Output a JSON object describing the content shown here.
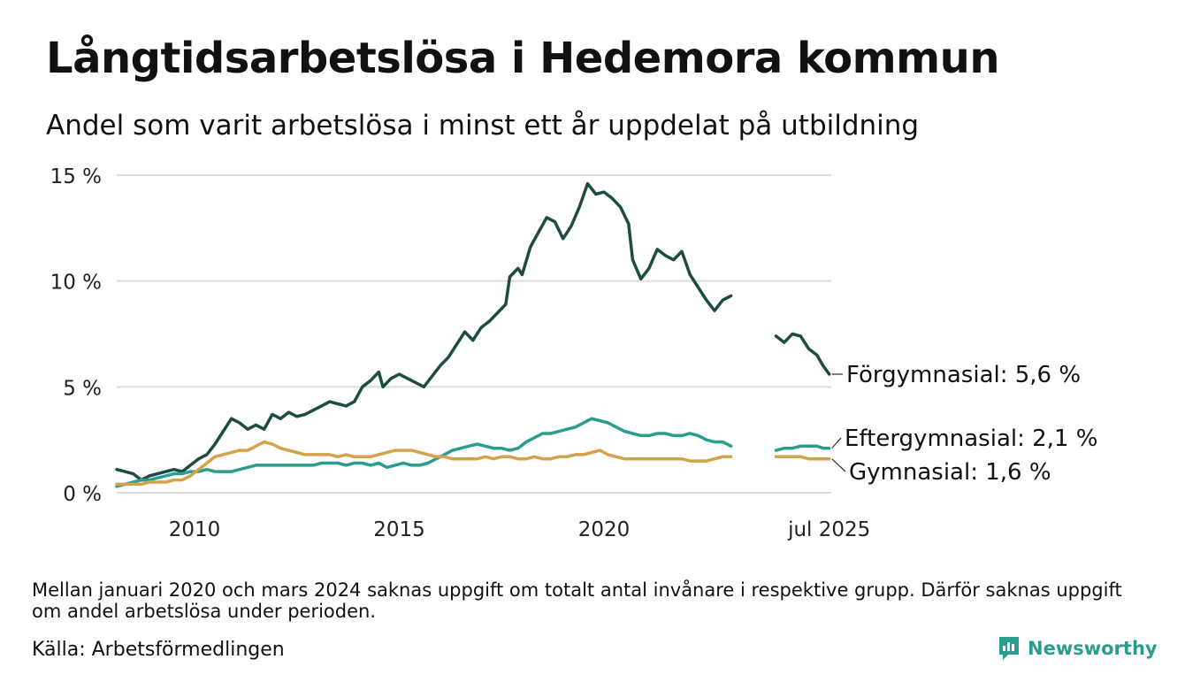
{
  "title": "Långtidsarbetslösa i Hedemora kommun",
  "subtitle": "Andel som varit arbetslösa i minst ett år uppdelat på utbildning",
  "note": "Mellan januari 2020 och mars 2024 saknas uppgift om totalt antal invånare i respektive grupp. Därför saknas uppgift om andel arbetslösa under perioden.",
  "source": "Källa: Arbetsförmedlingen",
  "brand": "Newsworthy",
  "colors": {
    "forgymnasial": "#1f4b45",
    "eftergymnasial": "#2a9d8f",
    "gymnasial": "#d4a24a",
    "grid": "#dddddd",
    "brand": "#2a9d8f"
  },
  "chart_data": {
    "type": "line",
    "x_unit": "year",
    "xlim": [
      2008.1,
      2025.55
    ],
    "ylim": [
      0,
      15
    ],
    "y_ticks": [
      {
        "v": 0,
        "label": "0 %"
      },
      {
        "v": 5,
        "label": "5 %"
      },
      {
        "v": 10,
        "label": "10 %"
      },
      {
        "v": 15,
        "label": "15 %"
      }
    ],
    "x_ticks": [
      {
        "v": 2010,
        "label": "2010"
      },
      {
        "v": 2015,
        "label": "2015"
      },
      {
        "v": 2020,
        "label": "2020"
      },
      {
        "v": 2025.5,
        "label": "jul 2025"
      }
    ],
    "grid": "horizontal",
    "series": [
      {
        "name": "Förgymnasial",
        "end_label": "Förgymnasial: 5,6 %",
        "color_key": "forgymnasial",
        "segments": [
          [
            [
              2008.1,
              1.1
            ],
            [
              2008.3,
              1.0
            ],
            [
              2008.5,
              0.9
            ],
            [
              2008.7,
              0.6
            ],
            [
              2008.9,
              0.8
            ],
            [
              2009.1,
              0.9
            ],
            [
              2009.3,
              1.0
            ],
            [
              2009.5,
              1.1
            ],
            [
              2009.7,
              1.0
            ],
            [
              2009.9,
              1.3
            ],
            [
              2010.1,
              1.6
            ],
            [
              2010.3,
              1.8
            ],
            [
              2010.5,
              2.3
            ],
            [
              2010.7,
              2.9
            ],
            [
              2010.9,
              3.5
            ],
            [
              2011.1,
              3.3
            ],
            [
              2011.3,
              3.0
            ],
            [
              2011.5,
              3.2
            ],
            [
              2011.7,
              3.0
            ],
            [
              2011.9,
              3.7
            ],
            [
              2012.1,
              3.5
            ],
            [
              2012.3,
              3.8
            ],
            [
              2012.5,
              3.6
            ],
            [
              2012.7,
              3.7
            ],
            [
              2012.9,
              3.9
            ],
            [
              2013.1,
              4.1
            ],
            [
              2013.3,
              4.3
            ],
            [
              2013.5,
              4.2
            ],
            [
              2013.7,
              4.1
            ],
            [
              2013.9,
              4.3
            ],
            [
              2014.1,
              5.0
            ],
            [
              2014.3,
              5.3
            ],
            [
              2014.5,
              5.7
            ],
            [
              2014.6,
              5.0
            ],
            [
              2014.8,
              5.4
            ],
            [
              2015.0,
              5.6
            ],
            [
              2015.2,
              5.4
            ],
            [
              2015.4,
              5.2
            ],
            [
              2015.6,
              5.0
            ],
            [
              2015.8,
              5.5
            ],
            [
              2016.0,
              6.0
            ],
            [
              2016.2,
              6.4
            ],
            [
              2016.4,
              7.0
            ],
            [
              2016.6,
              7.6
            ],
            [
              2016.8,
              7.2
            ],
            [
              2017.0,
              7.8
            ],
            [
              2017.2,
              8.1
            ],
            [
              2017.4,
              8.5
            ],
            [
              2017.6,
              8.9
            ],
            [
              2017.7,
              10.2
            ],
            [
              2017.9,
              10.6
            ],
            [
              2018.0,
              10.3
            ],
            [
              2018.2,
              11.6
            ],
            [
              2018.4,
              12.3
            ],
            [
              2018.6,
              13.0
            ],
            [
              2018.8,
              12.8
            ],
            [
              2018.9,
              12.4
            ],
            [
              2019.0,
              12.0
            ],
            [
              2019.2,
              12.6
            ],
            [
              2019.4,
              13.5
            ],
            [
              2019.6,
              14.6
            ],
            [
              2019.8,
              14.1
            ],
            [
              2020.0,
              14.2
            ],
            [
              2020.2,
              13.9
            ],
            [
              2020.4,
              13.5
            ],
            [
              2020.6,
              12.7
            ],
            [
              2020.7,
              11.0
            ],
            [
              2020.9,
              10.1
            ],
            [
              2021.1,
              10.6
            ],
            [
              2021.3,
              11.5
            ],
            [
              2021.5,
              11.2
            ],
            [
              2021.7,
              11.0
            ],
            [
              2021.9,
              11.4
            ],
            [
              2022.1,
              10.3
            ],
            [
              2022.3,
              9.7
            ],
            [
              2022.5,
              9.1
            ],
            [
              2022.7,
              8.6
            ],
            [
              2022.9,
              9.1
            ],
            [
              2023.1,
              9.3
            ]
          ],
          [
            [
              2024.2,
              7.4
            ],
            [
              2024.4,
              7.1
            ],
            [
              2024.6,
              7.5
            ],
            [
              2024.8,
              7.4
            ],
            [
              2025.0,
              6.8
            ],
            [
              2025.2,
              6.5
            ],
            [
              2025.35,
              6.0
            ],
            [
              2025.5,
              5.6
            ]
          ]
        ]
      },
      {
        "name": "Eftergymnasial",
        "end_label": "Eftergymnasial: 2,1 %",
        "color_key": "eftergymnasial",
        "segments": [
          [
            [
              2008.1,
              0.3
            ],
            [
              2008.3,
              0.4
            ],
            [
              2008.5,
              0.5
            ],
            [
              2008.7,
              0.6
            ],
            [
              2008.9,
              0.6
            ],
            [
              2009.1,
              0.7
            ],
            [
              2009.3,
              0.8
            ],
            [
              2009.5,
              0.9
            ],
            [
              2009.7,
              0.9
            ],
            [
              2009.9,
              1.0
            ],
            [
              2010.1,
              1.0
            ],
            [
              2010.3,
              1.1
            ],
            [
              2010.5,
              1.0
            ],
            [
              2010.7,
              1.0
            ],
            [
              2010.9,
              1.0
            ],
            [
              2011.1,
              1.1
            ],
            [
              2011.3,
              1.2
            ],
            [
              2011.5,
              1.3
            ],
            [
              2011.7,
              1.3
            ],
            [
              2011.9,
              1.3
            ],
            [
              2012.1,
              1.3
            ],
            [
              2012.3,
              1.3
            ],
            [
              2012.5,
              1.3
            ],
            [
              2012.7,
              1.3
            ],
            [
              2012.9,
              1.3
            ],
            [
              2013.1,
              1.4
            ],
            [
              2013.3,
              1.4
            ],
            [
              2013.5,
              1.4
            ],
            [
              2013.7,
              1.3
            ],
            [
              2013.9,
              1.4
            ],
            [
              2014.1,
              1.4
            ],
            [
              2014.3,
              1.3
            ],
            [
              2014.5,
              1.4
            ],
            [
              2014.7,
              1.2
            ],
            [
              2014.9,
              1.3
            ],
            [
              2015.1,
              1.4
            ],
            [
              2015.3,
              1.3
            ],
            [
              2015.5,
              1.3
            ],
            [
              2015.7,
              1.4
            ],
            [
              2015.9,
              1.6
            ],
            [
              2016.1,
              1.8
            ],
            [
              2016.3,
              2.0
            ],
            [
              2016.5,
              2.1
            ],
            [
              2016.7,
              2.2
            ],
            [
              2016.9,
              2.3
            ],
            [
              2017.1,
              2.2
            ],
            [
              2017.3,
              2.1
            ],
            [
              2017.5,
              2.1
            ],
            [
              2017.7,
              2.0
            ],
            [
              2017.9,
              2.1
            ],
            [
              2018.1,
              2.4
            ],
            [
              2018.3,
              2.6
            ],
            [
              2018.5,
              2.8
            ],
            [
              2018.7,
              2.8
            ],
            [
              2018.9,
              2.9
            ],
            [
              2019.1,
              3.0
            ],
            [
              2019.3,
              3.1
            ],
            [
              2019.5,
              3.3
            ],
            [
              2019.7,
              3.5
            ],
            [
              2019.9,
              3.4
            ],
            [
              2020.1,
              3.3
            ],
            [
              2020.3,
              3.1
            ],
            [
              2020.5,
              2.9
            ],
            [
              2020.7,
              2.8
            ],
            [
              2020.9,
              2.7
            ],
            [
              2021.1,
              2.7
            ],
            [
              2021.3,
              2.8
            ],
            [
              2021.5,
              2.8
            ],
            [
              2021.7,
              2.7
            ],
            [
              2021.9,
              2.7
            ],
            [
              2022.1,
              2.8
            ],
            [
              2022.3,
              2.7
            ],
            [
              2022.5,
              2.5
            ],
            [
              2022.7,
              2.4
            ],
            [
              2022.9,
              2.4
            ],
            [
              2023.1,
              2.2
            ]
          ],
          [
            [
              2024.2,
              2.0
            ],
            [
              2024.4,
              2.1
            ],
            [
              2024.6,
              2.1
            ],
            [
              2024.8,
              2.2
            ],
            [
              2025.0,
              2.2
            ],
            [
              2025.2,
              2.2
            ],
            [
              2025.35,
              2.1
            ],
            [
              2025.5,
              2.1
            ]
          ]
        ]
      },
      {
        "name": "Gymnasial",
        "end_label": "Gymnasial: 1,6 %",
        "color_key": "gymnasial",
        "segments": [
          [
            [
              2008.1,
              0.4
            ],
            [
              2008.3,
              0.4
            ],
            [
              2008.5,
              0.4
            ],
            [
              2008.7,
              0.4
            ],
            [
              2008.9,
              0.5
            ],
            [
              2009.1,
              0.5
            ],
            [
              2009.3,
              0.5
            ],
            [
              2009.5,
              0.6
            ],
            [
              2009.7,
              0.6
            ],
            [
              2009.9,
              0.8
            ],
            [
              2010.1,
              1.1
            ],
            [
              2010.3,
              1.4
            ],
            [
              2010.5,
              1.7
            ],
            [
              2010.7,
              1.8
            ],
            [
              2010.9,
              1.9
            ],
            [
              2011.1,
              2.0
            ],
            [
              2011.3,
              2.0
            ],
            [
              2011.5,
              2.2
            ],
            [
              2011.7,
              2.4
            ],
            [
              2011.9,
              2.3
            ],
            [
              2012.1,
              2.1
            ],
            [
              2012.3,
              2.0
            ],
            [
              2012.5,
              1.9
            ],
            [
              2012.7,
              1.8
            ],
            [
              2012.9,
              1.8
            ],
            [
              2013.1,
              1.8
            ],
            [
              2013.3,
              1.8
            ],
            [
              2013.5,
              1.7
            ],
            [
              2013.7,
              1.8
            ],
            [
              2013.9,
              1.7
            ],
            [
              2014.1,
              1.7
            ],
            [
              2014.3,
              1.7
            ],
            [
              2014.5,
              1.8
            ],
            [
              2014.7,
              1.9
            ],
            [
              2014.9,
              2.0
            ],
            [
              2015.1,
              2.0
            ],
            [
              2015.3,
              2.0
            ],
            [
              2015.5,
              1.9
            ],
            [
              2015.7,
              1.8
            ],
            [
              2015.9,
              1.7
            ],
            [
              2016.1,
              1.7
            ],
            [
              2016.3,
              1.6
            ],
            [
              2016.5,
              1.6
            ],
            [
              2016.7,
              1.6
            ],
            [
              2016.9,
              1.6
            ],
            [
              2017.1,
              1.7
            ],
            [
              2017.3,
              1.6
            ],
            [
              2017.5,
              1.7
            ],
            [
              2017.7,
              1.7
            ],
            [
              2017.9,
              1.6
            ],
            [
              2018.1,
              1.6
            ],
            [
              2018.3,
              1.7
            ],
            [
              2018.5,
              1.6
            ],
            [
              2018.7,
              1.6
            ],
            [
              2018.9,
              1.7
            ],
            [
              2019.1,
              1.7
            ],
            [
              2019.3,
              1.8
            ],
            [
              2019.5,
              1.8
            ],
            [
              2019.7,
              1.9
            ],
            [
              2019.9,
              2.0
            ],
            [
              2020.1,
              1.8
            ],
            [
              2020.3,
              1.7
            ],
            [
              2020.5,
              1.6
            ],
            [
              2020.7,
              1.6
            ],
            [
              2020.9,
              1.6
            ],
            [
              2021.1,
              1.6
            ],
            [
              2021.3,
              1.6
            ],
            [
              2021.5,
              1.6
            ],
            [
              2021.7,
              1.6
            ],
            [
              2021.9,
              1.6
            ],
            [
              2022.1,
              1.5
            ],
            [
              2022.3,
              1.5
            ],
            [
              2022.5,
              1.5
            ],
            [
              2022.7,
              1.6
            ],
            [
              2022.9,
              1.7
            ],
            [
              2023.1,
              1.7
            ]
          ],
          [
            [
              2024.2,
              1.7
            ],
            [
              2024.4,
              1.7
            ],
            [
              2024.6,
              1.7
            ],
            [
              2024.8,
              1.7
            ],
            [
              2025.0,
              1.6
            ],
            [
              2025.2,
              1.6
            ],
            [
              2025.35,
              1.6
            ],
            [
              2025.5,
              1.6
            ]
          ]
        ]
      }
    ]
  }
}
